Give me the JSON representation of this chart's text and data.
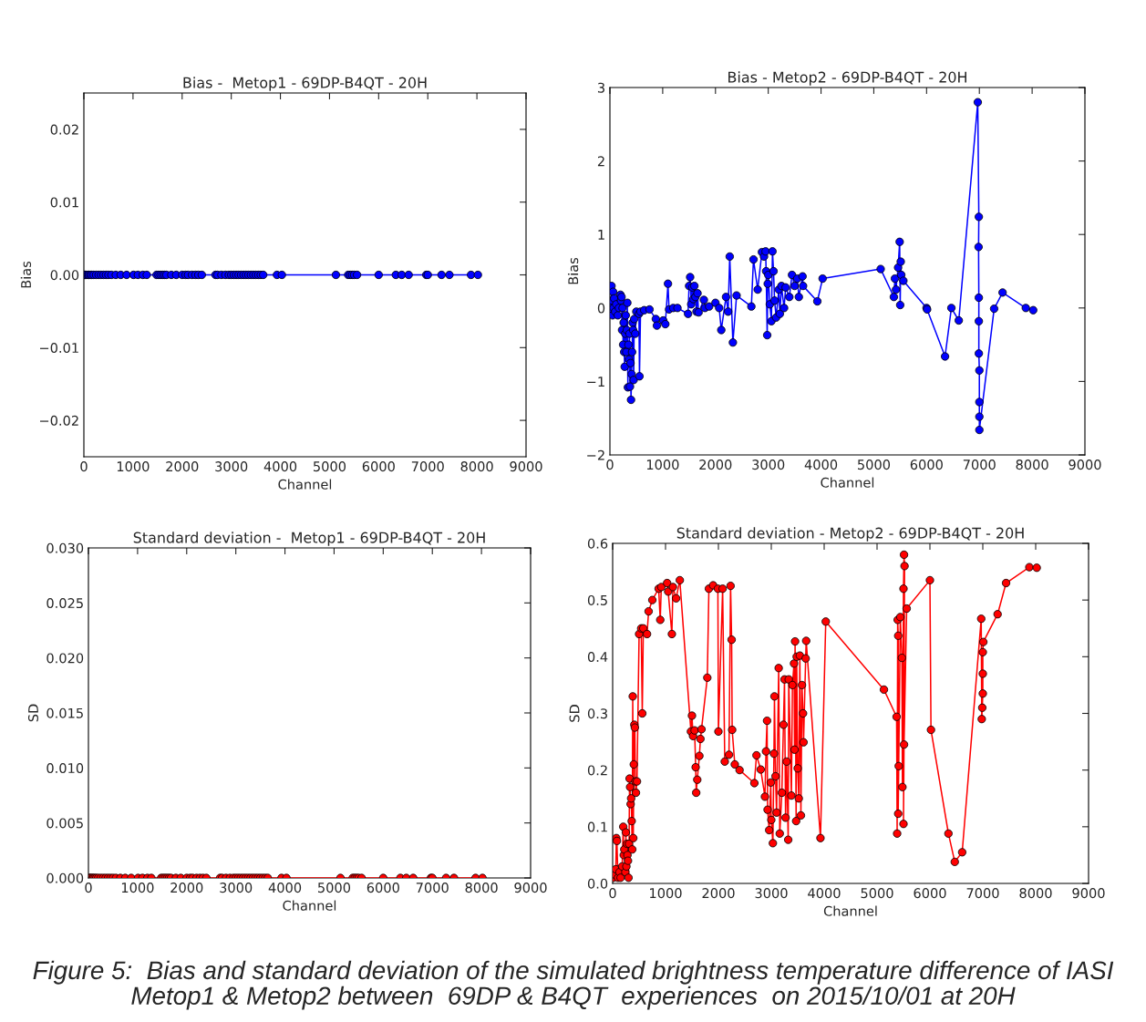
{
  "chart_data": [
    {
      "type": "line",
      "title": "Bias -  Metop1 - 69DP-B4QT - 20H",
      "xlabel": "Channel",
      "ylabel": "Bias",
      "marker": "circle",
      "line_style": "solid",
      "grid": false,
      "xlim": [
        0,
        9000
      ],
      "xticks": [
        0,
        1000,
        2000,
        3000,
        4000,
        5000,
        6000,
        7000,
        8000,
        9000
      ],
      "ylim": [
        -0.025,
        0.025
      ],
      "yticks": [
        {
          "value": -0.02,
          "label": "−0.02"
        },
        {
          "value": -0.01,
          "label": "−0.01"
        },
        {
          "value": 0,
          "label": "0.00"
        },
        {
          "value": 0.01,
          "label": "0.01"
        },
        {
          "value": 0.02,
          "label": "0.02"
        }
      ],
      "series": [
        {
          "color": "#0000ff",
          "x": [
            10,
            30,
            50,
            80,
            100,
            130,
            160,
            200,
            250,
            300,
            350,
            400,
            450,
            500,
            560,
            650,
            750,
            870,
            1010,
            1100,
            1200,
            1280,
            1480,
            1520,
            1560,
            1600,
            1640,
            1680,
            1780,
            1880,
            2000,
            2070,
            2120,
            2200,
            2270,
            2330,
            2400,
            2680,
            2720,
            2800,
            2880,
            2950,
            3000,
            3050,
            3100,
            3150,
            3200,
            3250,
            3300,
            3350,
            3400,
            3450,
            3500,
            3550,
            3600,
            3650,
            3930,
            4030,
            5130,
            5380,
            5420,
            5460,
            5500,
            5560,
            6000,
            6350,
            6470,
            6610,
            6970,
            7000,
            7280,
            7440,
            7880,
            8020
          ],
          "values": [
            0,
            0,
            0,
            0,
            0,
            0,
            0,
            0,
            0,
            0,
            0,
            0,
            0,
            0,
            0,
            0,
            0,
            0,
            0,
            0,
            0,
            0,
            0,
            0,
            0,
            0,
            0,
            0,
            0,
            0,
            0,
            0,
            0,
            0,
            0,
            0,
            0,
            0,
            0,
            0,
            0,
            0,
            0,
            0,
            0,
            0,
            0,
            0,
            0,
            0,
            0,
            0,
            0,
            0,
            0,
            0,
            0,
            0,
            0,
            0,
            0,
            0,
            0,
            0,
            0,
            0,
            0,
            0,
            0,
            0,
            0,
            0,
            0,
            0
          ]
        }
      ]
    },
    {
      "type": "line",
      "title": "Bias - Metop2 - 69DP-B4QT - 20H",
      "xlabel": "Channel",
      "ylabel": "Bias",
      "marker": "circle",
      "line_style": "solid",
      "grid": false,
      "xlim": [
        0,
        9000
      ],
      "xticks": [
        0,
        1000,
        2000,
        3000,
        4000,
        5000,
        6000,
        7000,
        8000,
        9000
      ],
      "ylim": [
        -2,
        3
      ],
      "yticks": [
        {
          "value": -2,
          "label": "−2"
        },
        {
          "value": -1,
          "label": "−1"
        },
        0,
        1,
        2,
        3
      ],
      "series": [
        {
          "color": "#0000ff",
          "x": [
            10,
            20,
            30,
            40,
            50,
            60,
            70,
            80,
            100,
            120,
            150,
            170,
            200,
            210,
            220,
            230,
            240,
            250,
            260,
            270,
            280,
            290,
            300,
            310,
            320,
            330,
            340,
            350,
            360,
            370,
            380,
            390,
            400,
            410,
            420,
            430,
            440,
            450,
            460,
            480,
            500,
            550,
            560,
            580,
            650,
            750,
            870,
            890,
            1010,
            1050,
            1100,
            1120,
            1200,
            1280,
            1480,
            1500,
            1520,
            1540,
            1560,
            1580,
            1600,
            1620,
            1640,
            1660,
            1680,
            1780,
            1800,
            1880,
            2000,
            2070,
            2110,
            2200,
            2240,
            2270,
            2330,
            2400,
            2680,
            2720,
            2800,
            2880,
            2920,
            2950,
            2960,
            2980,
            2990,
            3000,
            3030,
            3060,
            3080,
            3100,
            3120,
            3150,
            3200,
            3220,
            3250,
            3300,
            3330,
            3400,
            3450,
            3500,
            3550,
            3580,
            3650,
            3660,
            3930,
            4030,
            5130,
            5380,
            5400,
            5420,
            5460,
            5490,
            5500,
            5510,
            5520,
            5560,
            6000,
            6010,
            6350,
            6470,
            6610,
            6970,
            6990,
            6985,
            6990,
            6990,
            6990,
            7000,
            7000,
            7000,
            7000,
            7280,
            7440,
            7880,
            8020
          ],
          "values": [
            0.0,
            -0.05,
            0.3,
            0.1,
            -0.1,
            0.22,
            0.0,
            0.13,
            -0.05,
            0.05,
            -0.1,
            0.0,
            0.18,
            0.1,
            0.15,
            -0.3,
            0.0,
            -0.5,
            -0.2,
            -0.6,
            -0.8,
            -0.35,
            -0.1,
            -0.6,
            -0.3,
            0.07,
            -1.08,
            -0.5,
            -0.7,
            -0.35,
            -1.07,
            -0.75,
            -1.25,
            -0.9,
            -0.6,
            -0.2,
            -0.3,
            -0.98,
            -0.15,
            -0.35,
            -0.05,
            -0.08,
            -0.93,
            -0.05,
            -0.03,
            -0.02,
            -0.15,
            -0.24,
            -0.17,
            -0.22,
            0.33,
            -0.02,
            0.0,
            0.0,
            -0.08,
            0.3,
            0.42,
            0.05,
            0.28,
            0.12,
            0.3,
            0.15,
            -0.05,
            0.2,
            -0.06,
            0.11,
            0.0,
            0.02,
            0.07,
            0.0,
            -0.3,
            0.15,
            -0.05,
            0.7,
            -0.47,
            0.17,
            0.02,
            0.66,
            0.25,
            0.76,
            0.7,
            0.77,
            0.5,
            -0.37,
            0.33,
            0.45,
            0.05,
            -0.18,
            0.77,
            0.5,
            0.1,
            -0.13,
            0.25,
            -0.08,
            0.3,
            0.0,
            0.28,
            0.15,
            0.45,
            0.3,
            0.4,
            0.15,
            0.43,
            0.3,
            0.09,
            0.4,
            0.53,
            0.15,
            0.4,
            0.25,
            0.55,
            0.9,
            0.04,
            0.63,
            0.45,
            0.37,
            0.0,
            -0.02,
            -0.66,
            0.0,
            -0.17,
            2.8,
            1.24,
            0.83,
            0.14,
            -0.18,
            -0.62,
            -0.85,
            -1.28,
            -1.48,
            -1.66,
            -0.01,
            0.21,
            0.0,
            -0.03
          ]
        }
      ]
    },
    {
      "type": "line",
      "title": "Standard deviation -  Metop1 - 69DP-B4QT - 20H",
      "xlabel": "Channel",
      "ylabel": "SD",
      "marker": "circle",
      "line_style": "solid",
      "grid": false,
      "xlim": [
        0,
        9000
      ],
      "xticks": [
        0,
        1000,
        2000,
        3000,
        4000,
        5000,
        6000,
        7000,
        8000,
        9000
      ],
      "ylim": [
        0,
        0.03
      ],
      "yticks": [
        {
          "value": 0,
          "label": "0.000"
        },
        {
          "value": 0.005,
          "label": "0.005"
        },
        {
          "value": 0.01,
          "label": "0.010"
        },
        {
          "value": 0.015,
          "label": "0.015"
        },
        {
          "value": 0.02,
          "label": "0.020"
        },
        {
          "value": 0.025,
          "label": "0.025"
        },
        {
          "value": 0.03,
          "label": "0.030"
        }
      ],
      "series": [
        {
          "color": "#ff0000",
          "x": [
            10,
            30,
            50,
            80,
            100,
            130,
            160,
            200,
            250,
            300,
            350,
            400,
            450,
            500,
            560,
            650,
            750,
            870,
            1010,
            1100,
            1200,
            1280,
            1480,
            1520,
            1560,
            1600,
            1640,
            1680,
            1780,
            1880,
            2000,
            2070,
            2120,
            2200,
            2270,
            2330,
            2400,
            2680,
            2720,
            2800,
            2880,
            2950,
            3000,
            3050,
            3100,
            3150,
            3200,
            3250,
            3300,
            3350,
            3400,
            3450,
            3500,
            3550,
            3600,
            3650,
            3930,
            4030,
            5130,
            5380,
            5420,
            5460,
            5500,
            5560,
            6000,
            6350,
            6470,
            6610,
            6970,
            7000,
            7280,
            7440,
            7880,
            8020
          ],
          "values": [
            0,
            0,
            0,
            0,
            0,
            0,
            0,
            0,
            0,
            0,
            0,
            0,
            0,
            0,
            0,
            0,
            0,
            0,
            0,
            0,
            0,
            0,
            0,
            0,
            0,
            0,
            0,
            0,
            0,
            0,
            0,
            0,
            0,
            0,
            0,
            0,
            0,
            0,
            0,
            0,
            0,
            0,
            0,
            0,
            0,
            0,
            0,
            0,
            0,
            0,
            0,
            0,
            0,
            0,
            0,
            0,
            0,
            0,
            0,
            0,
            0,
            0,
            0,
            0,
            0,
            0,
            0,
            0,
            0,
            0,
            0,
            0,
            0,
            0
          ]
        }
      ]
    },
    {
      "type": "line",
      "title": "Standard deviation - Metop2 - 69DP-B4QT - 20H",
      "xlabel": "Channel",
      "ylabel": "SD",
      "marker": "circle",
      "line_style": "solid",
      "grid": false,
      "xlim": [
        0,
        9000
      ],
      "xticks": [
        0,
        1000,
        2000,
        3000,
        4000,
        5000,
        6000,
        7000,
        8000,
        9000
      ],
      "ylim": [
        0,
        0.6
      ],
      "yticks": [
        {
          "value": 0,
          "label": "0.0"
        },
        0.1,
        0.2,
        0.3,
        0.4,
        0.5,
        0.6
      ],
      "annotations": [
        "Figure 5:  Bias and standard deviation of the simulated brightness temperature difference of IASI Metop1 & Metop2 between  69DP & B4QT  experiences  on 2015/10/01 at 20H"
      ],
      "series": [
        {
          "color": "#ff0000",
          "x": [
            10,
            30,
            50,
            60,
            70,
            80,
            100,
            130,
            150,
            180,
            200,
            210,
            220,
            240,
            250,
            260,
            270,
            280,
            290,
            300,
            310,
            320,
            330,
            340,
            350,
            360,
            370,
            380,
            390,
            400,
            410,
            420,
            430,
            440,
            460,
            500,
            540,
            560,
            580,
            650,
            680,
            750,
            870,
            900,
            920,
            1030,
            1050,
            1120,
            1140,
            1200,
            1270,
            1480,
            1500,
            1520,
            1550,
            1570,
            1580,
            1600,
            1640,
            1660,
            1680,
            1790,
            1820,
            1900,
            1990,
            2000,
            2080,
            2120,
            2200,
            2230,
            2250,
            2260,
            2310,
            2400,
            2680,
            2720,
            2800,
            2880,
            2900,
            2920,
            2930,
            2960,
            2990,
            3000,
            3030,
            3050,
            3060,
            3080,
            3100,
            3140,
            3160,
            3200,
            3230,
            3250,
            3270,
            3290,
            3320,
            3330,
            3380,
            3400,
            3430,
            3440,
            3450,
            3470,
            3480,
            3500,
            3520,
            3540,
            3560,
            3580,
            3600,
            3610,
            3650,
            3660,
            3930,
            4030,
            5130,
            5370,
            5380,
            5390,
            5400,
            5400,
            5410,
            5440,
            5470,
            5480,
            5500,
            5510,
            5520,
            5500,
            5510,
            5560,
            6000,
            6020,
            6350,
            6470,
            6610,
            6970,
            6980,
            6990,
            7000,
            7000,
            7000,
            7010,
            7280,
            7440,
            7880,
            8020
          ],
          "values": [
            0.01,
            0.02,
            0.015,
            0.025,
            0.08,
            0.075,
            0.01,
            0.02,
            0.01,
            0.03,
            0.1,
            0.05,
            0.06,
            0.02,
            0.09,
            0.03,
            0.07,
            0.05,
            0.04,
            0.01,
            0.07,
            0.185,
            0.17,
            0.14,
            0.15,
            0.11,
            0.06,
            0.33,
            0.08,
            0.21,
            0.28,
            0.275,
            0.18,
            0.16,
            0.18,
            0.44,
            0.45,
            0.3,
            0.45,
            0.44,
            0.48,
            0.5,
            0.52,
            0.465,
            0.523,
            0.53,
            0.515,
            0.44,
            0.523,
            0.503,
            0.535,
            0.268,
            0.296,
            0.26,
            0.27,
            0.205,
            0.16,
            0.183,
            0.225,
            0.255,
            0.272,
            0.363,
            0.52,
            0.526,
            0.52,
            0.268,
            0.52,
            0.215,
            0.227,
            0.525,
            0.43,
            0.271,
            0.21,
            0.2,
            0.177,
            0.226,
            0.201,
            0.153,
            0.233,
            0.287,
            0.13,
            0.094,
            0.178,
            0.112,
            0.071,
            0.229,
            0.33,
            0.189,
            0.125,
            0.38,
            0.088,
            0.16,
            0.28,
            0.36,
            0.116,
            0.215,
            0.077,
            0.36,
            0.155,
            0.35,
            0.388,
            0.236,
            0.427,
            0.11,
            0.4,
            0.203,
            0.15,
            0.402,
            0.12,
            0.35,
            0.3,
            0.249,
            0.397,
            0.428,
            0.08,
            0.462,
            0.342,
            0.294,
            0.088,
            0.465,
            0.437,
            0.123,
            0.207,
            0.47,
            0.398,
            0.17,
            0.52,
            0.58,
            0.56,
            0.105,
            0.245,
            0.485,
            0.535,
            0.271,
            0.088,
            0.038,
            0.055,
            0.467,
            0.29,
            0.31,
            0.335,
            0.37,
            0.408,
            0.426,
            0.475,
            0.53,
            0.558,
            0.557
          ]
        }
      ]
    }
  ]
}
